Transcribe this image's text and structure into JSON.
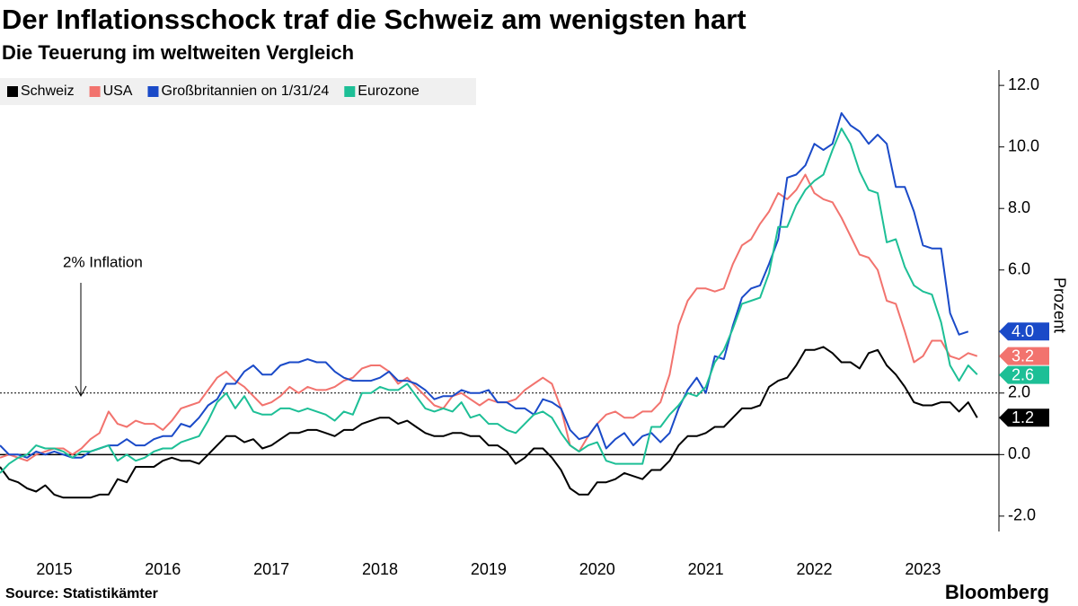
{
  "chart_data": {
    "type": "line",
    "title": "Der Inflationsschock traf die Schweiz am wenigsten hart",
    "subtitle": "Die Teuerung im weltweiten Vergleich",
    "y_label": "Prozent",
    "source": "Source: Statistikämter",
    "brand": "Bloomberg",
    "annotation": {
      "label": "2% Inflation",
      "value": 2
    },
    "xlim": [
      2015,
      2024.2
    ],
    "xticks": [
      {
        "value": 2015.5,
        "label": "2015"
      },
      {
        "value": 2016.5,
        "label": "2016"
      },
      {
        "value": 2017.5,
        "label": "2017"
      },
      {
        "value": 2018.5,
        "label": "2018"
      },
      {
        "value": 2019.5,
        "label": "2019"
      },
      {
        "value": 2020.5,
        "label": "2020"
      },
      {
        "value": 2021.5,
        "label": "2021"
      },
      {
        "value": 2022.5,
        "label": "2022"
      },
      {
        "value": 2023.5,
        "label": "2023"
      }
    ],
    "ylim": [
      -2.5,
      12.5
    ],
    "yticks": [
      {
        "value": -2,
        "label": "-2.0"
      },
      {
        "value": 0,
        "label": "0.0"
      },
      {
        "value": 2,
        "label": "2.0"
      },
      {
        "value": 4,
        "label": "4.0"
      },
      {
        "value": 6,
        "label": "6.0"
      },
      {
        "value": 8,
        "label": "8.0"
      },
      {
        "value": 10,
        "label": "10.0"
      },
      {
        "value": 12,
        "label": "12.0"
      }
    ],
    "x": [
      2015,
      2015.083,
      2015.167,
      2015.25,
      2015.333,
      2015.417,
      2015.5,
      2015.583,
      2015.667,
      2015.75,
      2015.833,
      2015.917,
      2016,
      2016.083,
      2016.167,
      2016.25,
      2016.333,
      2016.417,
      2016.5,
      2016.583,
      2016.667,
      2016.75,
      2016.833,
      2016.917,
      2017,
      2017.083,
      2017.167,
      2017.25,
      2017.333,
      2017.417,
      2017.5,
      2017.583,
      2017.667,
      2017.75,
      2017.833,
      2017.917,
      2018,
      2018.083,
      2018.167,
      2018.25,
      2018.333,
      2018.417,
      2018.5,
      2018.583,
      2018.667,
      2018.75,
      2018.833,
      2018.917,
      2019,
      2019.083,
      2019.167,
      2019.25,
      2019.333,
      2019.417,
      2019.5,
      2019.583,
      2019.667,
      2019.75,
      2019.833,
      2019.917,
      2020,
      2020.083,
      2020.167,
      2020.25,
      2020.333,
      2020.417,
      2020.5,
      2020.583,
      2020.667,
      2020.75,
      2020.833,
      2020.917,
      2021,
      2021.083,
      2021.167,
      2021.25,
      2021.333,
      2021.417,
      2021.5,
      2021.583,
      2021.667,
      2021.75,
      2021.833,
      2021.917,
      2022,
      2022.083,
      2022.167,
      2022.25,
      2022.333,
      2022.417,
      2022.5,
      2022.583,
      2022.667,
      2022.75,
      2022.833,
      2022.917,
      2023,
      2023.083,
      2023.167,
      2023.25,
      2023.333,
      2023.417,
      2023.5,
      2023.583,
      2023.667,
      2023.75,
      2023.833,
      2023.917,
      2024
    ],
    "series": [
      {
        "name": "Schweiz",
        "color": "#000000",
        "end_label": "1.2",
        "values": [
          -0.4,
          -0.8,
          -0.9,
          -1.1,
          -1.2,
          -1.0,
          -1.3,
          -1.4,
          -1.4,
          -1.4,
          -1.4,
          -1.3,
          -1.3,
          -0.8,
          -0.9,
          -0.4,
          -0.4,
          -0.4,
          -0.2,
          -0.1,
          -0.2,
          -0.2,
          -0.3,
          0.0,
          0.3,
          0.6,
          0.6,
          0.4,
          0.5,
          0.2,
          0.3,
          0.5,
          0.7,
          0.7,
          0.8,
          0.8,
          0.7,
          0.6,
          0.8,
          0.8,
          1.0,
          1.1,
          1.2,
          1.2,
          1.0,
          1.1,
          0.9,
          0.7,
          0.6,
          0.6,
          0.7,
          0.7,
          0.6,
          0.6,
          0.3,
          0.3,
          0.1,
          -0.3,
          -0.1,
          0.2,
          0.2,
          -0.1,
          -0.5,
          -1.1,
          -1.3,
          -1.3,
          -0.9,
          -0.9,
          -0.8,
          -0.6,
          -0.7,
          -0.8,
          -0.5,
          -0.5,
          -0.2,
          0.3,
          0.6,
          0.6,
          0.7,
          0.9,
          0.9,
          1.2,
          1.5,
          1.5,
          1.6,
          2.2,
          2.4,
          2.5,
          2.9,
          3.4,
          3.4,
          3.5,
          3.3,
          3.0,
          3.0,
          2.8,
          3.3,
          3.4,
          2.9,
          2.6,
          2.2,
          1.7,
          1.6,
          1.6,
          1.7,
          1.7,
          1.4,
          1.7,
          1.2
        ]
      },
      {
        "name": "USA",
        "color": "#f2736e",
        "end_label": "3.2",
        "values": [
          -0.1,
          0.0,
          -0.1,
          -0.2,
          0.0,
          0.1,
          0.2,
          0.2,
          0.0,
          0.2,
          0.5,
          0.7,
          1.4,
          1.0,
          0.9,
          1.1,
          1.0,
          1.0,
          0.8,
          1.1,
          1.5,
          1.6,
          1.7,
          2.1,
          2.5,
          2.7,
          2.4,
          2.2,
          1.9,
          1.6,
          1.7,
          1.9,
          2.2,
          2.0,
          2.2,
          2.1,
          2.1,
          2.2,
          2.4,
          2.5,
          2.8,
          2.9,
          2.9,
          2.7,
          2.3,
          2.5,
          2.2,
          1.9,
          1.6,
          1.5,
          1.9,
          2.0,
          1.8,
          1.6,
          1.8,
          1.7,
          1.7,
          1.8,
          2.1,
          2.3,
          2.5,
          2.3,
          1.5,
          0.3,
          0.1,
          0.6,
          1.0,
          1.3,
          1.4,
          1.2,
          1.2,
          1.4,
          1.4,
          1.7,
          2.6,
          4.2,
          5.0,
          5.4,
          5.4,
          5.3,
          5.4,
          6.2,
          6.8,
          7.0,
          7.5,
          7.9,
          8.5,
          8.3,
          8.6,
          9.1,
          8.5,
          8.3,
          8.2,
          7.7,
          7.1,
          6.5,
          6.4,
          6.0,
          5.0,
          4.9,
          4.0,
          3.0,
          3.2,
          3.7,
          3.7,
          3.2,
          3.1,
          3.3,
          3.2
        ]
      },
      {
        "name": "Großbritannien on 1/31/24",
        "color": "#1a4ac8",
        "end_label": "4.0",
        "values": [
          0.3,
          0.0,
          0.0,
          -0.1,
          0.1,
          0.0,
          0.1,
          0.0,
          -0.1,
          -0.1,
          0.1,
          0.2,
          0.3,
          0.3,
          0.5,
          0.3,
          0.3,
          0.5,
          0.6,
          0.6,
          1.0,
          0.9,
          1.2,
          1.6,
          1.8,
          2.3,
          2.3,
          2.7,
          2.9,
          2.6,
          2.6,
          2.9,
          3.0,
          3.0,
          3.1,
          3.0,
          3.0,
          2.7,
          2.5,
          2.4,
          2.4,
          2.4,
          2.5,
          2.7,
          2.4,
          2.4,
          2.3,
          2.1,
          1.8,
          1.9,
          1.9,
          2.1,
          2.0,
          2.0,
          2.1,
          1.7,
          1.7,
          1.5,
          1.5,
          1.3,
          1.8,
          1.7,
          1.5,
          0.8,
          0.5,
          0.6,
          1.0,
          0.2,
          0.5,
          0.7,
          0.3,
          0.6,
          0.7,
          0.4,
          0.7,
          1.5,
          2.1,
          2.5,
          2.0,
          3.2,
          3.1,
          4.2,
          5.1,
          5.4,
          5.5,
          6.2,
          7.0,
          9.0,
          9.1,
          9.4,
          10.1,
          9.9,
          10.1,
          11.1,
          10.7,
          10.5,
          10.1,
          10.4,
          10.1,
          8.7,
          8.7,
          7.9,
          6.8,
          6.7,
          6.7,
          4.6,
          3.9,
          4.0,
          null
        ]
      },
      {
        "name": "Eurozone",
        "color": "#1dbf96",
        "end_label": "2.6",
        "values": [
          -0.6,
          -0.3,
          -0.1,
          0.0,
          0.3,
          0.2,
          0.2,
          0.1,
          -0.1,
          0.1,
          0.1,
          0.2,
          0.3,
          -0.2,
          0.0,
          -0.2,
          -0.1,
          0.1,
          0.2,
          0.2,
          0.4,
          0.5,
          0.6,
          1.1,
          1.7,
          2.0,
          1.5,
          1.9,
          1.4,
          1.3,
          1.3,
          1.5,
          1.5,
          1.4,
          1.5,
          1.4,
          1.3,
          1.1,
          1.4,
          1.3,
          2.0,
          2.0,
          2.2,
          2.1,
          2.1,
          2.3,
          1.9,
          1.5,
          1.4,
          1.5,
          1.4,
          1.7,
          1.2,
          1.3,
          1.0,
          1.0,
          0.8,
          0.7,
          1.0,
          1.3,
          1.4,
          1.2,
          0.7,
          0.3,
          0.1,
          0.3,
          0.4,
          -0.2,
          -0.3,
          -0.3,
          -0.3,
          -0.3,
          0.9,
          0.9,
          1.3,
          1.6,
          2.0,
          1.9,
          2.2,
          3.0,
          3.4,
          4.1,
          4.9,
          5.0,
          5.1,
          5.9,
          7.4,
          7.4,
          8.1,
          8.6,
          8.9,
          9.1,
          9.9,
          10.6,
          10.1,
          9.2,
          8.6,
          8.5,
          6.9,
          7.0,
          6.1,
          5.5,
          5.3,
          5.2,
          4.3,
          2.9,
          2.4,
          2.9,
          2.6
        ]
      }
    ]
  }
}
